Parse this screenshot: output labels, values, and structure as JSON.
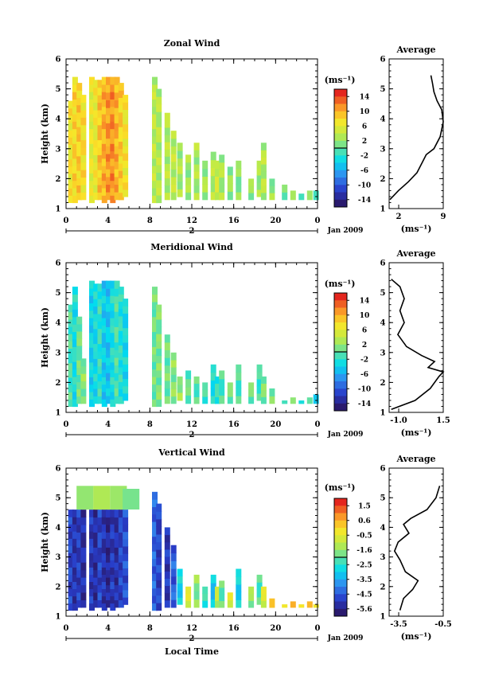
{
  "chart_data": [
    {
      "type": "heatmap",
      "title": "Zonal Wind",
      "ylabel": "Height (km)",
      "xlabel": "",
      "x_ticks": [
        "0",
        "4",
        "8",
        "12",
        "16",
        "20",
        "0"
      ],
      "y_ticks": [
        "1",
        "2",
        "3",
        "4",
        "5",
        "6"
      ],
      "xlim": [
        0,
        24
      ],
      "ylim": [
        1,
        6
      ],
      "date_ticks": [
        "2"
      ],
      "date_label": "Jan 2009",
      "colorbar": {
        "unit": "(ms⁻¹)",
        "ticks": [
          "14",
          "10",
          "6",
          "2",
          "-2",
          "-6",
          "-10",
          "-14"
        ],
        "range": [
          -16,
          16
        ]
      },
      "columns": [
        [
          0.2,
          1.2,
          4.6,
          7.5
        ],
        [
          0.6,
          1.2,
          5.4,
          8.5
        ],
        [
          1.0,
          1.3,
          5.2,
          9.0
        ],
        [
          1.4,
          1.3,
          4.8,
          8.0
        ],
        [
          2.2,
          1.2,
          5.4,
          6.5
        ],
        [
          2.6,
          1.3,
          5.3,
          7.0
        ],
        [
          3.0,
          1.3,
          5.3,
          9.5
        ],
        [
          3.4,
          1.2,
          5.4,
          10.5
        ],
        [
          3.8,
          1.3,
          5.4,
          11.5
        ],
        [
          4.2,
          1.2,
          5.4,
          12.0
        ],
        [
          4.6,
          1.3,
          5.4,
          10.5
        ],
        [
          5.0,
          1.3,
          5.2,
          9.0
        ],
        [
          5.4,
          1.4,
          4.8,
          7.5
        ],
        [
          8.2,
          1.2,
          5.4,
          4.0
        ],
        [
          8.6,
          1.2,
          5.0,
          3.5
        ],
        [
          9.4,
          1.3,
          4.2,
          3.5
        ],
        [
          10.0,
          1.3,
          3.6,
          4.0
        ],
        [
          10.6,
          1.4,
          3.2,
          3.0
        ],
        [
          11.4,
          1.3,
          2.8,
          2.5
        ],
        [
          12.2,
          1.3,
          3.2,
          3.0
        ],
        [
          13.0,
          1.3,
          2.6,
          2.5
        ],
        [
          13.8,
          1.3,
          2.9,
          3.5
        ],
        [
          14.2,
          1.3,
          2.6,
          5.0
        ],
        [
          14.6,
          1.3,
          2.8,
          3.0
        ],
        [
          15.4,
          1.3,
          2.4,
          2.0
        ],
        [
          16.2,
          1.3,
          2.6,
          1.5
        ],
        [
          17.4,
          1.3,
          2.0,
          2.0
        ],
        [
          18.2,
          1.4,
          2.6,
          2.5
        ],
        [
          18.6,
          1.3,
          3.2,
          3.5
        ],
        [
          19.4,
          1.3,
          2.0,
          2.0
        ],
        [
          20.6,
          1.3,
          1.8,
          1.0
        ],
        [
          21.4,
          1.3,
          1.6,
          1.0
        ],
        [
          22.2,
          1.3,
          1.5,
          0.5
        ],
        [
          23.0,
          1.3,
          1.6,
          0.5
        ],
        [
          23.6,
          1.3,
          1.6,
          0.5
        ]
      ],
      "profile": {
        "title": "Average",
        "xlabel": "(ms⁻¹)",
        "x_ticks": [
          "2",
          "9"
        ],
        "xlim": [
          2,
          9
        ],
        "ylim": [
          1,
          6
        ],
        "y_ticks": [
          "1",
          "2",
          "3",
          "4",
          "5",
          "6"
        ],
        "points": [
          [
            2.1,
            1.3
          ],
          [
            3.2,
            1.6
          ],
          [
            4.5,
            1.9
          ],
          [
            5.6,
            2.2
          ],
          [
            6.2,
            2.5
          ],
          [
            6.8,
            2.8
          ],
          [
            7.8,
            3.0
          ],
          [
            8.6,
            3.4
          ],
          [
            9.0,
            3.9
          ],
          [
            8.8,
            4.3
          ],
          [
            8.2,
            4.6
          ],
          [
            7.8,
            4.9
          ],
          [
            7.6,
            5.2
          ],
          [
            7.4,
            5.45
          ]
        ]
      }
    },
    {
      "type": "heatmap",
      "title": "Meridional Wind",
      "ylabel": "Height (km)",
      "xlabel": "",
      "x_ticks": [
        "0",
        "4",
        "8",
        "12",
        "16",
        "20",
        "0"
      ],
      "y_ticks": [
        "1",
        "2",
        "3",
        "4",
        "5",
        "6"
      ],
      "xlim": [
        0,
        24
      ],
      "ylim": [
        1,
        6
      ],
      "date_ticks": [
        "2"
      ],
      "date_label": "Jan 2009",
      "colorbar": {
        "unit": "(ms⁻¹)",
        "ticks": [
          "14",
          "10",
          "6",
          "2",
          "-2",
          "-6",
          "-10",
          "-14"
        ],
        "range": [
          -16,
          16
        ]
      },
      "columns": [
        [
          0.2,
          1.2,
          4.6,
          -1.0
        ],
        [
          0.6,
          1.2,
          5.2,
          -3.0
        ],
        [
          1.0,
          1.3,
          4.2,
          0.5
        ],
        [
          1.4,
          1.3,
          2.8,
          1.5
        ],
        [
          2.2,
          1.2,
          5.4,
          -4.0
        ],
        [
          2.6,
          1.3,
          5.3,
          -3.5
        ],
        [
          3.0,
          1.3,
          5.3,
          -2.0
        ],
        [
          3.4,
          1.2,
          5.4,
          -4.5
        ],
        [
          3.8,
          1.3,
          5.4,
          -5.0
        ],
        [
          4.2,
          1.2,
          5.4,
          -3.0
        ],
        [
          4.6,
          1.3,
          5.4,
          -1.0
        ],
        [
          5.0,
          1.3,
          5.2,
          -2.5
        ],
        [
          5.4,
          1.4,
          4.8,
          -3.5
        ],
        [
          8.2,
          1.2,
          5.2,
          0.5
        ],
        [
          8.6,
          1.2,
          4.6,
          1.0
        ],
        [
          9.4,
          1.3,
          3.6,
          0.5
        ],
        [
          10.0,
          1.3,
          3.0,
          1.5
        ],
        [
          10.6,
          1.4,
          2.2,
          2.5
        ],
        [
          11.4,
          1.3,
          2.4,
          0.0
        ],
        [
          12.2,
          1.3,
          2.2,
          -0.5
        ],
        [
          13.0,
          1.3,
          2.0,
          -1.5
        ],
        [
          13.8,
          1.3,
          2.6,
          -3.0
        ],
        [
          14.2,
          1.3,
          2.2,
          -2.0
        ],
        [
          14.6,
          1.3,
          2.4,
          -1.0
        ],
        [
          15.4,
          1.3,
          2.0,
          0.5
        ],
        [
          16.2,
          1.3,
          2.6,
          -1.0
        ],
        [
          17.4,
          1.3,
          2.0,
          0.5
        ],
        [
          18.2,
          1.4,
          2.6,
          -1.5
        ],
        [
          18.6,
          1.3,
          2.2,
          1.0
        ],
        [
          19.4,
          1.3,
          1.8,
          0.5
        ],
        [
          20.6,
          1.3,
          1.4,
          0.5
        ],
        [
          21.4,
          1.3,
          1.5,
          0.0
        ],
        [
          22.2,
          1.3,
          1.4,
          -1.0
        ],
        [
          23.0,
          1.3,
          1.5,
          -2.0
        ],
        [
          23.6,
          1.3,
          1.6,
          -3.0
        ]
      ],
      "profile": {
        "title": "Average",
        "xlabel": "(ms⁻¹)",
        "x_ticks": [
          "-1.0",
          "1.5"
        ],
        "xlim": [
          -1.0,
          1.5
        ],
        "ylim": [
          1,
          6
        ],
        "y_ticks": [
          "1",
          "2",
          "3",
          "4",
          "5",
          "6"
        ],
        "points": [
          [
            -0.9,
            1.1
          ],
          [
            0.2,
            1.4
          ],
          [
            0.9,
            1.8
          ],
          [
            1.3,
            2.2
          ],
          [
            1.5,
            2.35
          ],
          [
            0.8,
            2.5
          ],
          [
            1.1,
            2.7
          ],
          [
            0.5,
            2.9
          ],
          [
            -0.2,
            3.2
          ],
          [
            -0.6,
            3.6
          ],
          [
            -0.3,
            4.0
          ],
          [
            -0.5,
            4.4
          ],
          [
            -0.3,
            4.8
          ],
          [
            -0.5,
            5.2
          ],
          [
            -0.9,
            5.45
          ]
        ]
      }
    },
    {
      "type": "heatmap",
      "title": "Vertical Wind",
      "ylabel": "Height (km)",
      "xlabel": "Local Time",
      "x_ticks": [
        "0",
        "4",
        "8",
        "12",
        "16",
        "20",
        "0"
      ],
      "y_ticks": [
        "1",
        "2",
        "3",
        "4",
        "5",
        "6"
      ],
      "xlim": [
        0,
        24
      ],
      "ylim": [
        1,
        6
      ],
      "date_ticks": [
        "2"
      ],
      "date_label": "Jan 2009",
      "colorbar": {
        "unit": "(ms⁻¹)",
        "ticks": [
          "1.5",
          "0.6",
          "-0.5",
          "-1.6",
          "-2.5",
          "-3.5",
          "-4.5",
          "-5.6"
        ],
        "range": [
          -6.0,
          2.0
        ]
      },
      "columns": [
        [
          0.2,
          1.2,
          4.6,
          -5.0
        ],
        [
          0.6,
          1.2,
          4.6,
          -5.3
        ],
        [
          1.0,
          1.3,
          4.6,
          -5.1
        ],
        [
          1.4,
          1.3,
          4.6,
          -5.4
        ],
        [
          2.2,
          1.2,
          4.6,
          -5.2
        ],
        [
          2.6,
          1.3,
          4.6,
          -5.5
        ],
        [
          3.0,
          1.3,
          4.6,
          -5.0
        ],
        [
          3.4,
          1.2,
          4.6,
          -5.3
        ],
        [
          3.8,
          1.3,
          4.6,
          -5.6
        ],
        [
          4.2,
          1.2,
          4.6,
          -5.2
        ],
        [
          4.6,
          1.3,
          4.6,
          -5.4
        ],
        [
          5.0,
          1.3,
          4.6,
          -5.0
        ],
        [
          5.4,
          1.4,
          4.6,
          -4.8
        ],
        [
          8.2,
          1.2,
          5.2,
          -4.5
        ],
        [
          8.6,
          1.2,
          4.8,
          -5.0
        ],
        [
          9.4,
          1.3,
          4.0,
          -5.2
        ],
        [
          10.0,
          1.3,
          3.4,
          -4.6
        ],
        [
          10.6,
          1.4,
          2.6,
          -3.0
        ],
        [
          11.4,
          1.3,
          2.0,
          -0.6
        ],
        [
          12.2,
          1.3,
          2.4,
          -1.6
        ],
        [
          13.0,
          1.3,
          2.0,
          -2.5
        ],
        [
          13.8,
          1.3,
          2.4,
          -3.2
        ],
        [
          14.2,
          1.3,
          2.0,
          -1.0
        ],
        [
          14.6,
          1.3,
          2.2,
          -2.0
        ],
        [
          15.4,
          1.3,
          1.8,
          -0.5
        ],
        [
          16.2,
          1.3,
          2.6,
          -3.0
        ],
        [
          17.4,
          1.3,
          2.0,
          -1.5
        ],
        [
          18.2,
          1.4,
          2.4,
          -2.2
        ],
        [
          18.6,
          1.3,
          2.0,
          -0.6
        ],
        [
          19.4,
          1.3,
          1.6,
          0.0
        ],
        [
          20.6,
          1.3,
          1.4,
          0.3
        ],
        [
          21.4,
          1.3,
          1.5,
          0.2
        ],
        [
          22.2,
          1.3,
          1.4,
          0.4
        ],
        [
          23.0,
          1.3,
          1.5,
          0.1
        ],
        [
          23.6,
          1.3,
          1.4,
          0.3
        ]
      ],
      "upper_band": [
        [
          1.0,
          4.6,
          5.4,
          -1.5
        ],
        [
          2.6,
          4.6,
          5.4,
          -1.2
        ],
        [
          4.2,
          4.6,
          5.4,
          -1.4
        ],
        [
          5.4,
          4.6,
          5.3,
          -1.8
        ]
      ],
      "profile": {
        "title": "Average",
        "xlabel": "(ms⁻¹)",
        "x_ticks": [
          "-3.5",
          "-0.5"
        ],
        "xlim": [
          -3.5,
          -0.5
        ],
        "ylim": [
          1,
          6
        ],
        "y_ticks": [
          "1",
          "2",
          "3",
          "4",
          "5",
          "6"
        ],
        "points": [
          [
            -2.9,
            1.2
          ],
          [
            -2.7,
            1.6
          ],
          [
            -2.2,
            1.9
          ],
          [
            -1.9,
            2.2
          ],
          [
            -2.6,
            2.5
          ],
          [
            -2.9,
            2.9
          ],
          [
            -3.2,
            3.2
          ],
          [
            -3.0,
            3.5
          ],
          [
            -2.4,
            3.8
          ],
          [
            -2.7,
            4.1
          ],
          [
            -2.3,
            4.3
          ],
          [
            -1.4,
            4.6
          ],
          [
            -0.9,
            5.0
          ],
          [
            -0.7,
            5.4
          ]
        ]
      }
    }
  ]
}
